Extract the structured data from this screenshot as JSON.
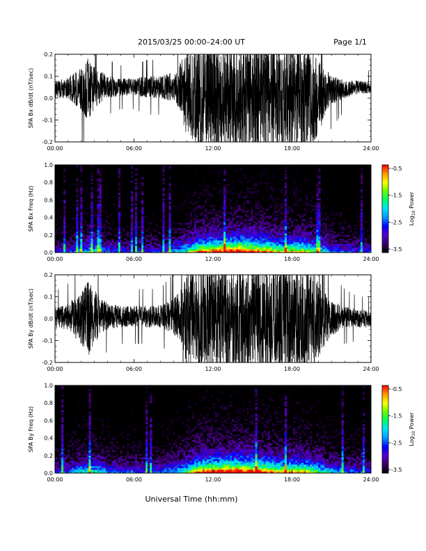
{
  "header": {
    "title": "2015/03/25  00:00–24:00 UT",
    "page": "Page 1/1"
  },
  "xaxis": {
    "label": "Universal Time (hh:mm)",
    "range_hours": [
      0,
      24
    ],
    "ticks": [
      "00:00",
      "06:00",
      "12:00",
      "18:00",
      "24:00"
    ]
  },
  "colorbar": {
    "label_prefix": "Log",
    "label_sub": "10",
    "label_suffix": " Power",
    "range": [
      -3.5,
      -0.5
    ],
    "ticks": [
      "-0.5",
      "-1.5",
      "-2.5",
      "-3.5"
    ],
    "colors": [
      "#000000",
      "#3a0066",
      "#5500cc",
      "#0000ff",
      "#0099ff",
      "#00e0ff",
      "#00ff66",
      "#66ff00",
      "#ffff00",
      "#ff9900",
      "#ff0000"
    ]
  },
  "chart_data": [
    {
      "type": "line",
      "ylabel": "SPA Bx dB/dt (nT/sec)",
      "ylim": [
        -0.2,
        0.2
      ],
      "yticks": [
        "0.2",
        "0.1",
        "0.0",
        "-0.1",
        "-0.2"
      ],
      "x_hours": [
        0,
        1,
        2,
        2.5,
        3,
        4,
        5,
        6,
        7,
        8,
        9,
        9.5,
        10,
        11,
        12,
        13,
        14,
        15,
        16,
        17,
        18,
        19,
        20,
        20.5,
        21,
        22,
        23,
        24
      ],
      "center": [
        0.04,
        0.05,
        0.04,
        0.04,
        0.05,
        0.05,
        0.05,
        0.05,
        0.05,
        0.05,
        0.05,
        0.05,
        0.03,
        0.0,
        0.0,
        0.0,
        0.0,
        0.0,
        0.0,
        0.0,
        0.0,
        0.0,
        0.0,
        0.03,
        0.04,
        0.04,
        0.05,
        0.05
      ],
      "amplitude": [
        0.04,
        0.05,
        0.1,
        0.15,
        0.1,
        0.05,
        0.04,
        0.04,
        0.05,
        0.05,
        0.07,
        0.12,
        0.2,
        0.25,
        0.25,
        0.25,
        0.25,
        0.25,
        0.25,
        0.25,
        0.25,
        0.25,
        0.18,
        0.1,
        0.07,
        0.04,
        0.03,
        0.03
      ]
    },
    {
      "type": "heatmap",
      "ylabel": "SPA Bx Freq (Hz)",
      "ylim": [
        0,
        1.0
      ],
      "yticks": [
        "1.0",
        "0.8",
        "0.6",
        "0.4",
        "0.2",
        "0.0"
      ],
      "x_hours": [
        0,
        1,
        2,
        3,
        4,
        5,
        6,
        7,
        8,
        9,
        10,
        11,
        12,
        13,
        14,
        15,
        16,
        17,
        18,
        19,
        20,
        21,
        22,
        23,
        24
      ],
      "activity": [
        0.3,
        0.3,
        0.45,
        0.5,
        0.35,
        0.3,
        0.3,
        0.3,
        0.3,
        0.4,
        0.55,
        0.8,
        0.85,
        0.9,
        0.95,
        0.85,
        0.8,
        0.7,
        0.7,
        0.7,
        0.55,
        0.4,
        0.35,
        0.3,
        0.3
      ]
    },
    {
      "type": "line",
      "ylabel": "SPA By dB/dt (nT/sec)",
      "ylim": [
        -0.2,
        0.2
      ],
      "yticks": [
        "0.2",
        "0.1",
        "0.0",
        "-0.1",
        "-0.2"
      ],
      "x_hours": [
        0,
        1,
        2,
        2.5,
        3,
        4,
        5,
        6,
        7,
        8,
        9,
        9.5,
        10,
        11,
        12,
        13,
        14,
        15,
        16,
        17,
        18,
        19,
        20,
        20.5,
        21,
        22,
        23,
        24
      ],
      "center": [
        0.0,
        0.01,
        0.0,
        0.0,
        0.01,
        0.01,
        0.01,
        0.01,
        0.01,
        0.01,
        0.01,
        0.01,
        0.0,
        0.0,
        0.0,
        0.0,
        0.0,
        0.0,
        0.0,
        0.0,
        0.0,
        0.0,
        0.0,
        0.0,
        0.0,
        0.01,
        0.0,
        0.0
      ],
      "amplitude": [
        0.05,
        0.06,
        0.12,
        0.18,
        0.12,
        0.06,
        0.05,
        0.05,
        0.05,
        0.05,
        0.08,
        0.12,
        0.2,
        0.25,
        0.25,
        0.25,
        0.25,
        0.25,
        0.25,
        0.25,
        0.25,
        0.25,
        0.2,
        0.12,
        0.08,
        0.05,
        0.04,
        0.04
      ]
    },
    {
      "type": "heatmap",
      "ylabel": "SPA By Freq (Hz)",
      "ylim": [
        0,
        1.0
      ],
      "yticks": [
        "1.0",
        "0.8",
        "0.6",
        "0.4",
        "0.2",
        "0.0"
      ],
      "x_hours": [
        0,
        1,
        2,
        3,
        4,
        5,
        6,
        7,
        8,
        9,
        10,
        11,
        12,
        13,
        14,
        15,
        16,
        17,
        18,
        19,
        20,
        21,
        22,
        23,
        24
      ],
      "activity": [
        0.35,
        0.35,
        0.5,
        0.55,
        0.4,
        0.35,
        0.35,
        0.35,
        0.35,
        0.45,
        0.6,
        0.85,
        0.9,
        0.95,
        0.95,
        0.9,
        0.85,
        0.75,
        0.75,
        0.75,
        0.6,
        0.45,
        0.4,
        0.35,
        0.35
      ]
    }
  ]
}
